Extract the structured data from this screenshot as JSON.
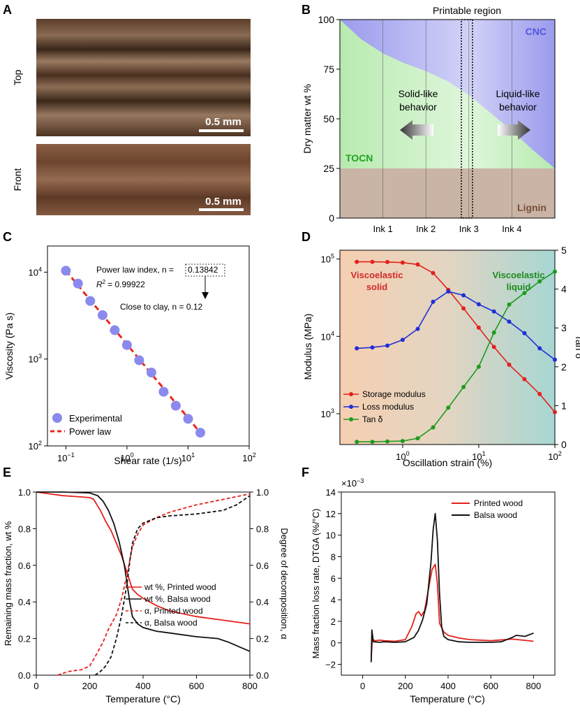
{
  "panels": {
    "A": {
      "letter": "A",
      "top_label": "Top",
      "front_label": "Front",
      "top_scalebar": "0.5 mm",
      "front_scalebar": "0.5 mm"
    }
  },
  "chart_data": [
    {
      "panel": "B",
      "type": "area",
      "title": "Printable region",
      "ylabel": "Dry matter wt %",
      "xlabel": "",
      "ylim": [
        0,
        100
      ],
      "yticks": [
        0,
        25,
        50,
        75,
        100
      ],
      "categories": [
        "Ink 1",
        "Ink 2",
        "Ink 3",
        "Ink 4"
      ],
      "regions": [
        {
          "name": "Lignin",
          "color": "#c9b4a6"
        },
        {
          "name": "TOCN",
          "color": "#b8ebb0"
        },
        {
          "name": "CNC",
          "color": "#9b9bee"
        }
      ],
      "lignin_level": 25,
      "boundary_x": [
        0,
        0.1,
        0.2,
        0.3,
        0.4,
        0.5,
        0.6,
        0.7,
        0.8,
        0.9,
        1.0
      ],
      "boundary_y": [
        100,
        90,
        83,
        78,
        74,
        69,
        62,
        53,
        44,
        34,
        25
      ],
      "annotations": [
        "Solid-like behavior",
        "Liquid-like behavior"
      ],
      "annotation_lines": [
        [
          "Solid-like",
          "behavior"
        ],
        [
          "Liquid-like",
          "behavior"
        ]
      ],
      "grid": "vertical"
    },
    {
      "panel": "C",
      "type": "scatter",
      "xlabel": "Shear rate (1/s)",
      "ylabel": "Viscosity (Pa s)",
      "xscale": "log",
      "yscale": "log",
      "xlim": [
        0.05,
        100
      ],
      "ylim": [
        100,
        20000
      ],
      "xticks": [
        0.1,
        1,
        10,
        100
      ],
      "xtick_labels": [
        [
          "10",
          "−1"
        ],
        [
          "10",
          "0"
        ],
        [
          "10",
          "1"
        ],
        [
          "10",
          "2"
        ]
      ],
      "yticks": [
        100,
        1000,
        10000
      ],
      "ytick_labels": [
        [
          "10",
          "2"
        ],
        [
          "10",
          "3"
        ],
        [
          "10",
          "4"
        ]
      ],
      "series": [
        {
          "name": "Experimental",
          "color": "#8a8aee",
          "x": [
            0.1,
            0.158,
            0.251,
            0.398,
            0.631,
            1.0,
            1.585,
            2.512,
            3.981,
            6.31,
            10.0,
            15.85
          ],
          "y": [
            10400,
            7400,
            4660,
            3200,
            2150,
            1450,
            970,
            700,
            420,
            290,
            205,
            142
          ]
        },
        {
          "name": "Power law",
          "color": "#e8261f",
          "x": [
            0.1,
            15.85
          ],
          "y": [
            10400,
            142
          ]
        }
      ],
      "annotations": {
        "power_law_prefix": "Power law index, n =",
        "power_law_value": "0.13842",
        "r2_label": "R",
        "r2_sup": "2",
        "r2_value": "= 0.99922",
        "clay": "Close to clay, n = 0.12"
      },
      "legend": "bottom-left"
    },
    {
      "panel": "D",
      "type": "line",
      "xlabel": "Oscillation strain (%)",
      "ylabel": "Modulus (MPa)",
      "y2label": "Tan δ",
      "xscale": "log",
      "yscale": "log",
      "xlim": [
        0.15,
        100
      ],
      "ylim": [
        400,
        130000
      ],
      "y2lim": [
        0,
        5
      ],
      "xticks": [
        1,
        10,
        100
      ],
      "xtick_labels": [
        [
          "10",
          "0"
        ],
        [
          "10",
          "1"
        ],
        [
          "10",
          "2"
        ]
      ],
      "yticks": [
        1000,
        10000,
        100000
      ],
      "ytick_labels": [
        [
          "10",
          "3"
        ],
        [
          "10",
          "4"
        ],
        [
          "10",
          "5"
        ]
      ],
      "y2ticks": [
        0,
        1,
        2,
        3,
        4,
        5
      ],
      "x": [
        0.25,
        0.4,
        0.63,
        1.0,
        1.58,
        2.51,
        3.98,
        6.31,
        10.0,
        15.85,
        25.1,
        39.8,
        63.1,
        100
      ],
      "series": [
        {
          "name": "Storage modulus",
          "color": "#e3211c",
          "axis": "left",
          "values": [
            92000,
            92000,
            91500,
            90000,
            85000,
            66000,
            40000,
            23000,
            13000,
            7300,
            4300,
            2800,
            1800,
            1050
          ]
        },
        {
          "name": "Loss modulus",
          "color": "#1f2fd6",
          "axis": "left",
          "values": [
            7000,
            7200,
            7600,
            9000,
            12500,
            28000,
            38000,
            34000,
            26000,
            21000,
            15500,
            11000,
            7000,
            5000
          ]
        },
        {
          "name": "Tan δ",
          "color": "#1e9a1e",
          "axis": "right",
          "values": [
            0.07,
            0.07,
            0.08,
            0.09,
            0.16,
            0.44,
            0.95,
            1.48,
            2.0,
            2.88,
            3.6,
            3.9,
            4.2,
            4.45
          ]
        }
      ],
      "annotations": [
        {
          "lines": [
            "Viscoelastic",
            "solid"
          ],
          "color": "#d12a2a"
        },
        {
          "lines": [
            "Viscoelastic",
            "liquid"
          ],
          "color": "#1e8a1e"
        }
      ],
      "legend": "bottom-left"
    },
    {
      "panel": "E",
      "type": "line",
      "xlabel": "Temperature (°C)",
      "ylabel": "Remaining mass fraction, wt %",
      "y2label": "Degree of decomposition, α",
      "xlim": [
        0,
        800
      ],
      "ylim": [
        0,
        1.0
      ],
      "y2lim": [
        0,
        1.0
      ],
      "xticks": [
        0,
        200,
        400,
        600,
        800
      ],
      "yticks": [
        0,
        0.2,
        0.4,
        0.6,
        0.8,
        1.0
      ],
      "series": [
        {
          "name": "wt %, Printed wood",
          "color": "#e3211c",
          "dash": "solid",
          "x": [
            0,
            50,
            100,
            150,
            200,
            215,
            240,
            260,
            280,
            300,
            320,
            340,
            360,
            380,
            400,
            450,
            500,
            600,
            700,
            800
          ],
          "y": [
            1.0,
            0.99,
            0.98,
            0.975,
            0.97,
            0.96,
            0.9,
            0.84,
            0.79,
            0.72,
            0.65,
            0.56,
            0.47,
            0.44,
            0.42,
            0.38,
            0.35,
            0.32,
            0.3,
            0.28
          ]
        },
        {
          "name": "wt %, Balsa wood",
          "color": "#111111",
          "dash": "solid",
          "x": [
            0,
            100,
            200,
            230,
            250,
            270,
            290,
            310,
            330,
            350,
            360,
            370,
            380,
            400,
            450,
            500,
            600,
            680,
            720,
            760,
            800
          ],
          "y": [
            1.0,
            1.0,
            0.995,
            0.98,
            0.95,
            0.9,
            0.83,
            0.73,
            0.6,
            0.4,
            0.32,
            0.3,
            0.28,
            0.26,
            0.24,
            0.23,
            0.21,
            0.2,
            0.18,
            0.155,
            0.13
          ]
        },
        {
          "name": "α, Printed wood",
          "color": "#e3211c",
          "dash": "dashed",
          "x": [
            80,
            120,
            170,
            200,
            220,
            250,
            270,
            300,
            320,
            340,
            360,
            380,
            400,
            450,
            500,
            600,
            700,
            800
          ],
          "y": [
            0.0,
            0.02,
            0.03,
            0.05,
            0.1,
            0.18,
            0.25,
            0.33,
            0.42,
            0.55,
            0.7,
            0.77,
            0.82,
            0.86,
            0.89,
            0.93,
            0.96,
            0.99
          ]
        },
        {
          "name": "α, Balsa wood",
          "color": "#111111",
          "dash": "dashed",
          "x": [
            220,
            240,
            260,
            280,
            300,
            320,
            340,
            350,
            360,
            380,
            400,
            450,
            500,
            600,
            700,
            750,
            800
          ],
          "y": [
            0.0,
            0.02,
            0.05,
            0.1,
            0.2,
            0.33,
            0.5,
            0.62,
            0.72,
            0.8,
            0.83,
            0.86,
            0.87,
            0.88,
            0.9,
            0.93,
            0.98
          ]
        }
      ],
      "legend": "middle-right"
    },
    {
      "panel": "F",
      "type": "line",
      "xlabel": "Temperature (°C)",
      "ylabel": "Mass fraction loss rate, DTGA (%/°C)",
      "multiplier": "×10",
      "multiplier_exp": "−3",
      "xlim": [
        -100,
        900
      ],
      "ylim": [
        -3,
        14
      ],
      "xticks": [
        0,
        200,
        400,
        600,
        800
      ],
      "yticks": [
        -2,
        0,
        2,
        4,
        6,
        8,
        10,
        12,
        14
      ],
      "series": [
        {
          "name": "Printed wood",
          "color": "#e3211c",
          "x": [
            40,
            45,
            60,
            80,
            100,
            150,
            200,
            230,
            250,
            262,
            275,
            290,
            310,
            325,
            340,
            350,
            360,
            380,
            400,
            450,
            500,
            600,
            700,
            750,
            800
          ],
          "y": [
            -1.6,
            0.3,
            0.2,
            0.25,
            0.2,
            0.15,
            0.3,
            1.5,
            2.7,
            2.9,
            2.5,
            3.0,
            5.2,
            6.8,
            7.3,
            5.5,
            1.8,
            1.0,
            0.7,
            0.45,
            0.3,
            0.2,
            0.35,
            0.25,
            0.15
          ]
        },
        {
          "name": "Balsa wood",
          "color": "#111111",
          "x": [
            40,
            43,
            50,
            80,
            100,
            150,
            200,
            240,
            260,
            280,
            300,
            320,
            330,
            340,
            350,
            360,
            370,
            380,
            400,
            450,
            500,
            600,
            650,
            700,
            720,
            760,
            800
          ],
          "y": [
            -1.8,
            1.2,
            0.1,
            0.05,
            0.1,
            0.05,
            0.1,
            0.5,
            1.1,
            2.1,
            3.6,
            7.5,
            10.5,
            12.0,
            9.5,
            4.5,
            1.5,
            0.6,
            0.3,
            0.1,
            0.05,
            0.05,
            0.1,
            0.5,
            0.7,
            0.6,
            0.9
          ]
        }
      ],
      "legend": "top-right"
    }
  ]
}
